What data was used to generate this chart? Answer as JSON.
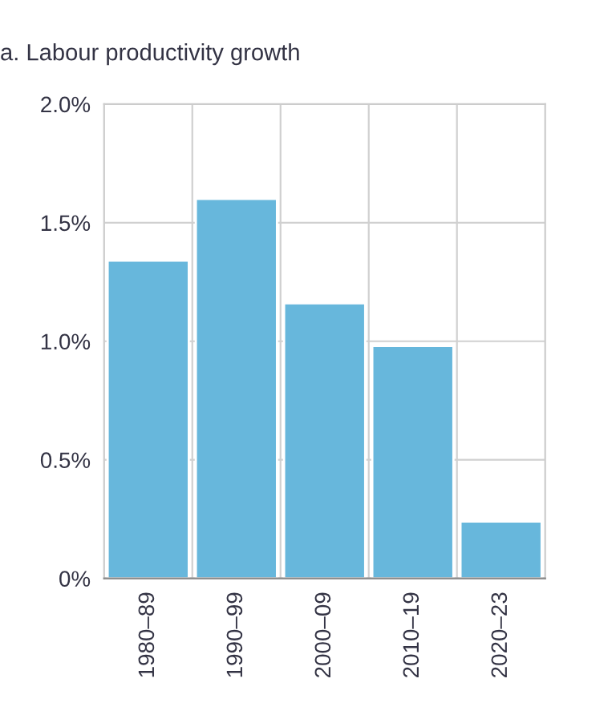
{
  "chart_data": {
    "type": "bar",
    "title": "a. Labour productivity growth",
    "categories": [
      "1980–89",
      "1990–99",
      "2000–09",
      "2010–19",
      "2020–23"
    ],
    "values": [
      1.34,
      1.6,
      1.16,
      0.98,
      0.24
    ],
    "color": "#67b7dc",
    "ylim": [
      0,
      2.0
    ],
    "yticks": [
      {
        "value": 0,
        "label": "0%"
      },
      {
        "value": 0.5,
        "label": "0.5%"
      },
      {
        "value": 1.0,
        "label": "1.0%"
      },
      {
        "value": 1.5,
        "label": "1.5%"
      },
      {
        "value": 2.0,
        "label": "2.0%"
      }
    ],
    "grid": true
  }
}
